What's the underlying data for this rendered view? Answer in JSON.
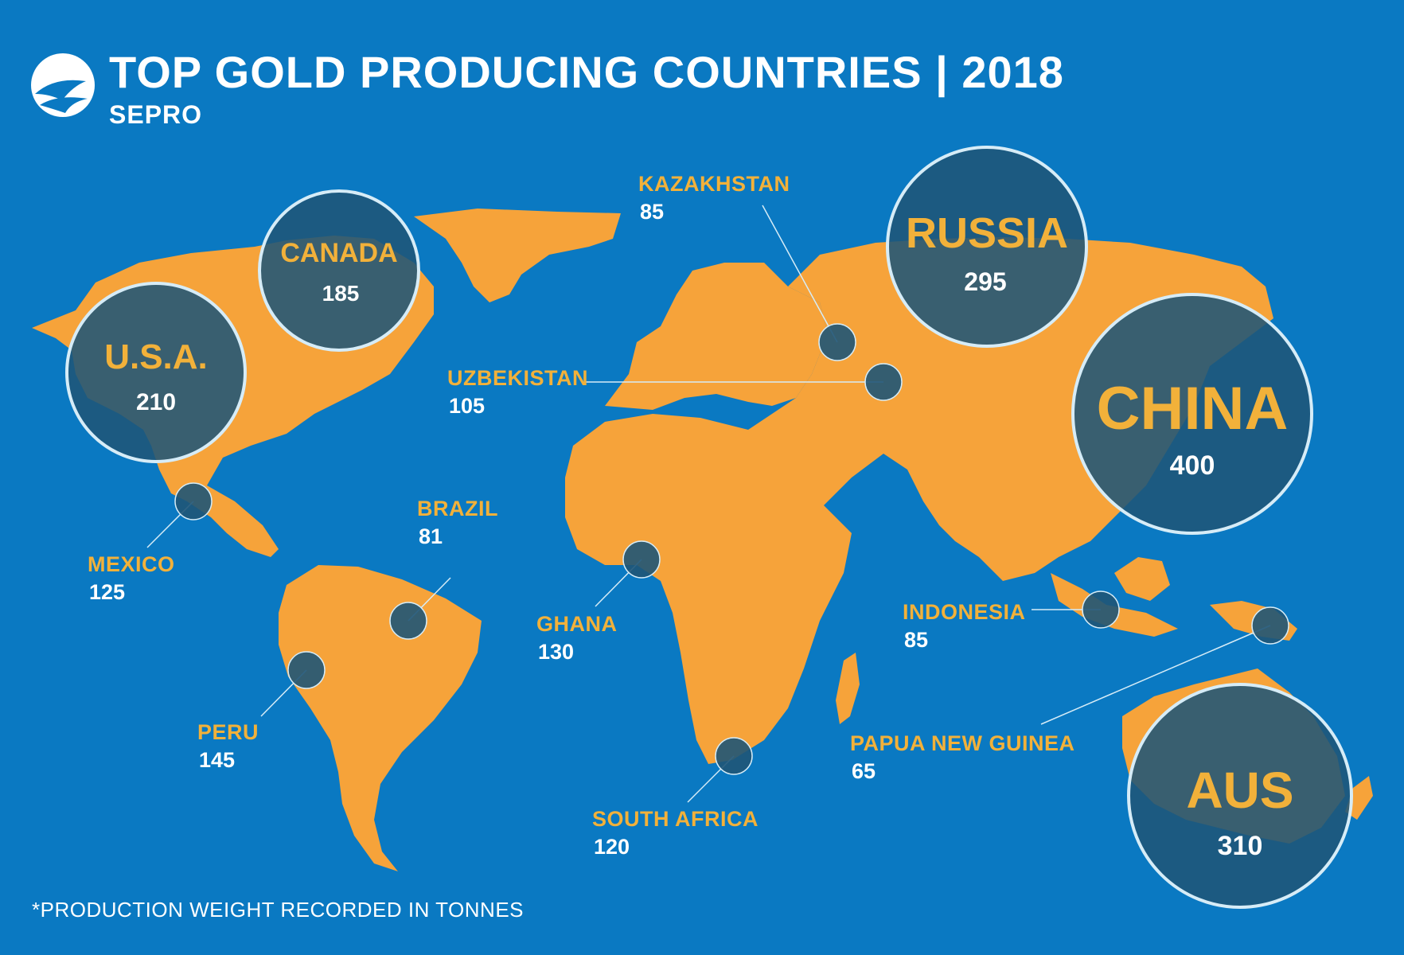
{
  "header": {
    "title": "TOP GOLD PRODUCING COUNTRIES | 2018",
    "brand": "SEPRO"
  },
  "footnote": "*PRODUCTION WEIGHT RECORDED IN TONNES",
  "colors": {
    "ocean": "#0a79c2",
    "land": "#f6a33a",
    "label_gold": "#f2b13a",
    "circle_fill": "#1f5577",
    "circle_stroke": "#d6ecf7"
  },
  "countries": [
    {
      "name": "CHINA",
      "value": "400"
    },
    {
      "name": "AUS",
      "value": "310"
    },
    {
      "name": "RUSSIA",
      "value": "295"
    },
    {
      "name": "U.S.A.",
      "value": "210"
    },
    {
      "name": "CANADA",
      "value": "185"
    },
    {
      "name": "PERU",
      "value": "145"
    },
    {
      "name": "GHANA",
      "value": "130"
    },
    {
      "name": "MEXICO",
      "value": "125"
    },
    {
      "name": "SOUTH AFRICA",
      "value": "120"
    },
    {
      "name": "UZBEKISTAN",
      "value": "105"
    },
    {
      "name": "KAZAKHSTAN",
      "value": "85"
    },
    {
      "name": "INDONESIA",
      "value": "85"
    },
    {
      "name": "BRAZIL",
      "value": "81"
    },
    {
      "name": "PAPUA NEW GUINEA",
      "value": "65"
    }
  ]
}
